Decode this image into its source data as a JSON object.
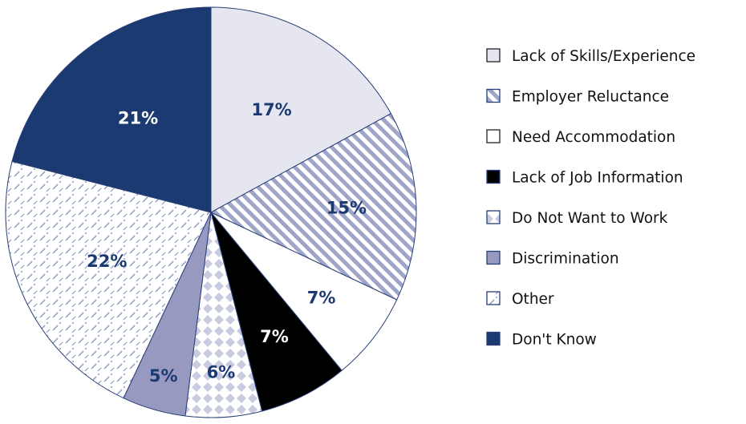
{
  "chart_data": {
    "type": "pie",
    "title": "",
    "legend_placement": "right",
    "unit": "%",
    "slices": [
      {
        "label": "Lack of Skills/Experience",
        "value": 17,
        "value_label": "17%",
        "color": "#e6e6f0",
        "pattern": "solid",
        "text_color": "#1c3a72"
      },
      {
        "label": "Employer Reluctance",
        "value": 15,
        "value_label": "15%",
        "color": "#9fa5c9",
        "pattern": "diagonal-stripes",
        "text_color": "#1c3a72"
      },
      {
        "label": "Need Accommodation",
        "value": 7,
        "value_label": "7%",
        "color": "#ffffff",
        "pattern": "solid",
        "text_color": "#1c3a72"
      },
      {
        "label": "Lack of Job Information",
        "value": 7,
        "value_label": "7%",
        "color": "#000000",
        "pattern": "solid",
        "text_color": "#ffffff"
      },
      {
        "label": "Do Not Want to Work",
        "value": 6,
        "value_label": "6%",
        "color": "#c9cbe0",
        "pattern": "diamond-check",
        "text_color": "#1c3a72"
      },
      {
        "label": "Discrimination",
        "value": 5,
        "value_label": "5%",
        "color": "#9799c0",
        "pattern": "solid",
        "text_color": "#1c3a72"
      },
      {
        "label": "Other",
        "value": 22,
        "value_label": "22%",
        "color": "#5b6fa8",
        "pattern": "dash-dots",
        "text_color": "#1c3a72"
      },
      {
        "label": "Don't Know",
        "value": 21,
        "value_label": "21%",
        "color": "#1c3a72",
        "pattern": "solid",
        "text_color": "#ffffff"
      }
    ]
  }
}
